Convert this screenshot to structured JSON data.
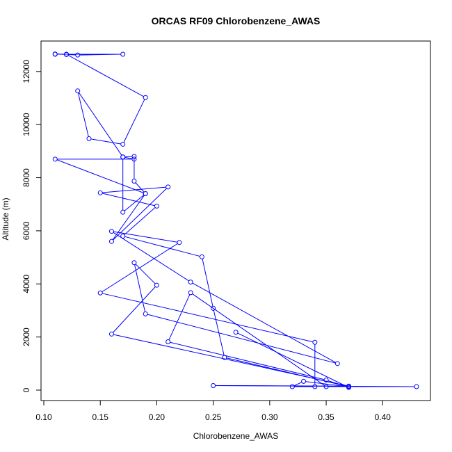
{
  "chart_data": {
    "type": "line",
    "title": "ORCAS RF09 Chlorobenzene_AWAS",
    "xlabel": "Chlorobenzene_AWAS",
    "ylabel": "Altitude (m)",
    "xlim": [
      0.1,
      0.43
    ],
    "ylim": [
      0,
      12650
    ],
    "x_ticks": [
      "0.10",
      "0.15",
      "0.20",
      "0.25",
      "0.30",
      "0.35",
      "0.40"
    ],
    "y_ticks": [
      "0",
      "2000",
      "4000",
      "6000",
      "8000",
      "10000",
      "12000"
    ],
    "grid": false,
    "series_color": "#0000ff",
    "series": [
      {
        "marker": "open-circle",
        "points": [
          [
            0.11,
            12650
          ],
          [
            0.17,
            12650
          ],
          [
            0.13,
            12620
          ],
          [
            0.12,
            12640
          ],
          [
            0.11,
            12660
          ],
          [
            0.12,
            12650
          ],
          [
            0.19,
            11020
          ],
          [
            0.17,
            9260
          ],
          [
            0.14,
            9470
          ],
          [
            0.13,
            11270
          ],
          [
            0.17,
            8780
          ],
          [
            0.18,
            8700
          ],
          [
            0.11,
            8700
          ],
          [
            0.19,
            7400
          ],
          [
            0.18,
            7870
          ],
          [
            0.18,
            8800
          ],
          [
            0.17,
            8780
          ],
          [
            0.17,
            6700
          ],
          [
            0.19,
            7400
          ],
          [
            0.16,
            5600
          ],
          [
            0.21,
            7650
          ],
          [
            0.15,
            7430
          ],
          [
            0.2,
            6930
          ],
          [
            0.17,
            5800
          ],
          [
            0.24,
            5020
          ],
          [
            0.25,
            3080
          ],
          [
            0.26,
            1230
          ],
          [
            0.37,
            130
          ],
          [
            0.33,
            330
          ],
          [
            0.32,
            130
          ],
          [
            0.34,
            130
          ],
          [
            0.34,
            1800
          ],
          [
            0.15,
            3660
          ],
          [
            0.22,
            5560
          ],
          [
            0.16,
            5980
          ],
          [
            0.23,
            4070
          ],
          [
            0.36,
            1000
          ],
          [
            0.19,
            2870
          ],
          [
            0.18,
            4800
          ],
          [
            0.2,
            3950
          ],
          [
            0.16,
            2110
          ],
          [
            0.37,
            150
          ],
          [
            0.25,
            170
          ],
          [
            0.43,
            130
          ],
          [
            0.35,
            130
          ],
          [
            0.23,
            3670
          ],
          [
            0.21,
            1820
          ],
          [
            0.35,
            380
          ],
          [
            0.37,
            100
          ],
          [
            0.27,
            2180
          ]
        ]
      }
    ]
  }
}
